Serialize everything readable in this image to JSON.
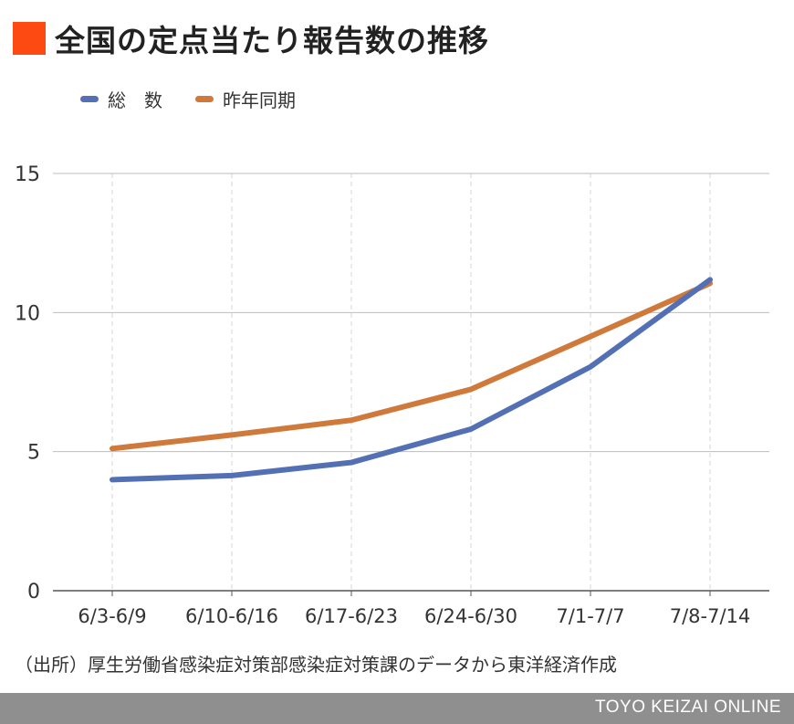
{
  "title": "全国の定点当たり報告数の推移",
  "colors": {
    "title_mark": "#fc4a12",
    "series_total": "#5470b4",
    "series_prev": "#cf7a3a",
    "grid": "#bdbdbd",
    "vgrid": "#d6d6d6",
    "footer_bg": "#8f8f8f"
  },
  "chart_data": {
    "type": "line",
    "categories": [
      "6/3-6/9",
      "6/10-6/16",
      "6/17-6/23",
      "6/24-6/30",
      "7/1-7/7",
      "7/8-7/14"
    ],
    "series": [
      {
        "name": "総　数",
        "values": [
          3.99,
          4.14,
          4.61,
          5.81,
          8.05,
          11.18
        ]
      },
      {
        "name": "昨年同期",
        "values": [
          5.11,
          5.6,
          6.13,
          7.24,
          9.14,
          11.05
        ]
      }
    ],
    "ylim": [
      0,
      15
    ],
    "yticks": [
      0,
      5,
      10,
      15
    ],
    "xlabel": "",
    "ylabel": "",
    "grid": true,
    "legend_position": "top-left"
  },
  "source": "（出所）厚生労働省感染症対策部感染症対策課のデータから東洋経済作成",
  "footer": "TOYO KEIZAI ONLINE"
}
